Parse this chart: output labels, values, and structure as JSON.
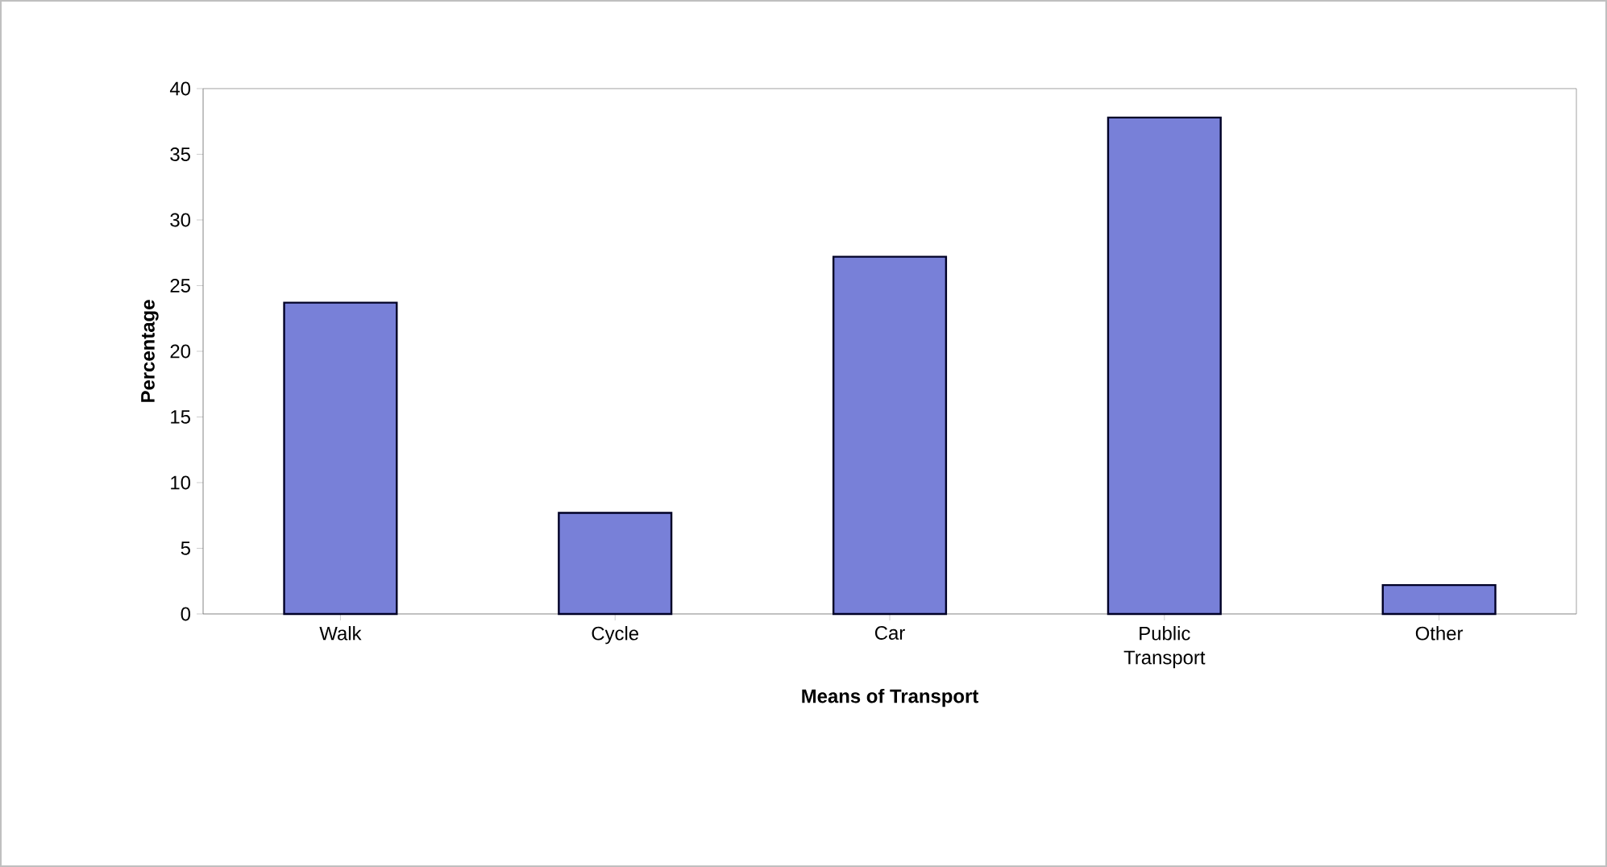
{
  "chart_data": {
    "type": "bar",
    "xlabel": "Means of Transport",
    "ylabel": "Percentage",
    "categories": [
      "Walk",
      "Cycle",
      "Car",
      "Public Transport",
      "Other"
    ],
    "values": [
      23.7,
      7.7,
      27.2,
      37.8,
      2.2
    ],
    "color": "#7880d8",
    "ylim": [
      0,
      40
    ],
    "yticks": [
      0,
      5,
      10,
      15,
      20,
      25,
      30,
      35,
      40
    ],
    "grid": false
  }
}
